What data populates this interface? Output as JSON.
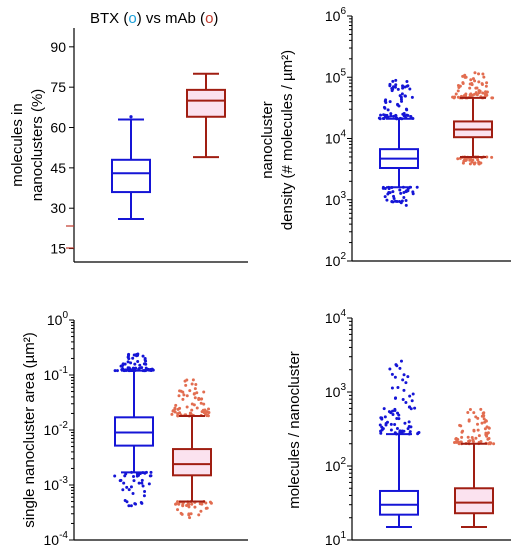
{
  "legend": {
    "a": "BTX",
    "vs": " vs ",
    "b": "mAb",
    "open": " (",
    "close": ")",
    "marker": "o"
  },
  "colors": {
    "BTX": "#1515d6",
    "mAb": "#a01e12",
    "mAb_scatter": "#e26d50",
    "mAb_fill": "#fbe2ef",
    "BTX_fill": "#ffffff",
    "axis": "#000000"
  },
  "chart_data": [
    {
      "type": "box",
      "panel": "top-left",
      "title": "",
      "ylabel": [
        "molecules in",
        "nanoclusters (%)"
      ],
      "yscale": "linear",
      "ylim": [
        10,
        97
      ],
      "yticks": [
        15,
        30,
        45,
        60,
        75,
        90
      ],
      "ytick_labels": [
        "15",
        "30",
        "45",
        "60",
        "75",
        "90"
      ],
      "series": [
        {
          "name": "BTX",
          "whisker_low": 26,
          "q1": 36,
          "median": 43,
          "q3": 48,
          "whisker_high": 63,
          "outliers": [
            64
          ]
        },
        {
          "name": "mAb",
          "whisker_low": 49,
          "q1": 64,
          "median": 70,
          "q3": 74,
          "whisker_high": 80,
          "outliers": []
        }
      ]
    },
    {
      "type": "box",
      "panel": "top-right",
      "title": "",
      "ylabel": [
        "nanocluster",
        "density (# molecules / µm²)"
      ],
      "yscale": "log",
      "ylim": [
        100,
        1000000
      ],
      "yticks": [
        100,
        1000,
        10000,
        100000,
        1000000
      ],
      "ytick_labels": [
        [
          "10",
          "2"
        ],
        [
          "10",
          "3"
        ],
        [
          "10",
          "4"
        ],
        [
          "10",
          "5"
        ],
        [
          "10",
          "6"
        ]
      ],
      "series": [
        {
          "name": "BTX",
          "whisker_low": 1600,
          "q1": 3300,
          "median": 4700,
          "q3": 6700,
          "whisker_high": 21000,
          "outlier_low_range": [
            800,
            1600
          ],
          "outlier_high_range": [
            21000,
            90000
          ]
        },
        {
          "name": "mAb",
          "whisker_low": 5000,
          "q1": 10500,
          "median": 14000,
          "q3": 19000,
          "whisker_high": 46000,
          "outlier_low_range": [
            3800,
            5000
          ],
          "outlier_high_range": [
            46000,
            130000
          ]
        }
      ]
    },
    {
      "type": "box",
      "panel": "bottom-left",
      "title": "",
      "ylabel": [
        "single nanocluster area (µm²)"
      ],
      "yscale": "log",
      "ylim": [
        0.0001,
        1
      ],
      "yticks": [
        0.0001,
        0.001,
        0.01,
        0.1,
        1
      ],
      "ytick_labels": [
        [
          "10",
          "-4"
        ],
        [
          "10",
          "-3"
        ],
        [
          "10",
          "-2"
        ],
        [
          "10",
          "-1"
        ],
        [
          "10",
          "0"
        ]
      ],
      "series": [
        {
          "name": "BTX",
          "whisker_low": 0.0017,
          "q1": 0.0052,
          "median": 0.009,
          "q3": 0.017,
          "whisker_high": 0.12,
          "outlier_low_range": [
            0.0004,
            0.0017
          ],
          "outlier_high_range": [
            0.12,
            0.25
          ]
        },
        {
          "name": "mAb",
          "whisker_low": 0.0005,
          "q1": 0.0015,
          "median": 0.0024,
          "q3": 0.0045,
          "whisker_high": 0.018,
          "outlier_low_range": [
            0.00025,
            0.0005
          ],
          "outlier_high_range": [
            0.018,
            0.09
          ]
        }
      ]
    },
    {
      "type": "box",
      "panel": "bottom-right",
      "title": "",
      "ylabel": [
        "molecules / nanocluster"
      ],
      "yscale": "log",
      "ylim": [
        10,
        10000
      ],
      "yticks": [
        10,
        100,
        1000,
        10000
      ],
      "ytick_labels": [
        [
          "10",
          "1"
        ],
        [
          "10",
          "2"
        ],
        [
          "10",
          "3"
        ],
        [
          "10",
          "4"
        ]
      ],
      "series": [
        {
          "name": "BTX",
          "whisker_low": 15,
          "q1": 22,
          "median": 30,
          "q3": 46,
          "whisker_high": 270,
          "outlier_low_range": [
            15,
            15
          ],
          "outlier_high_range": [
            270,
            2800
          ]
        },
        {
          "name": "mAb",
          "whisker_low": 15,
          "q1": 23,
          "median": 32,
          "q3": 50,
          "whisker_high": 200,
          "outlier_low_range": [
            15,
            15
          ],
          "outlier_high_range": [
            200,
            600
          ]
        }
      ]
    }
  ]
}
